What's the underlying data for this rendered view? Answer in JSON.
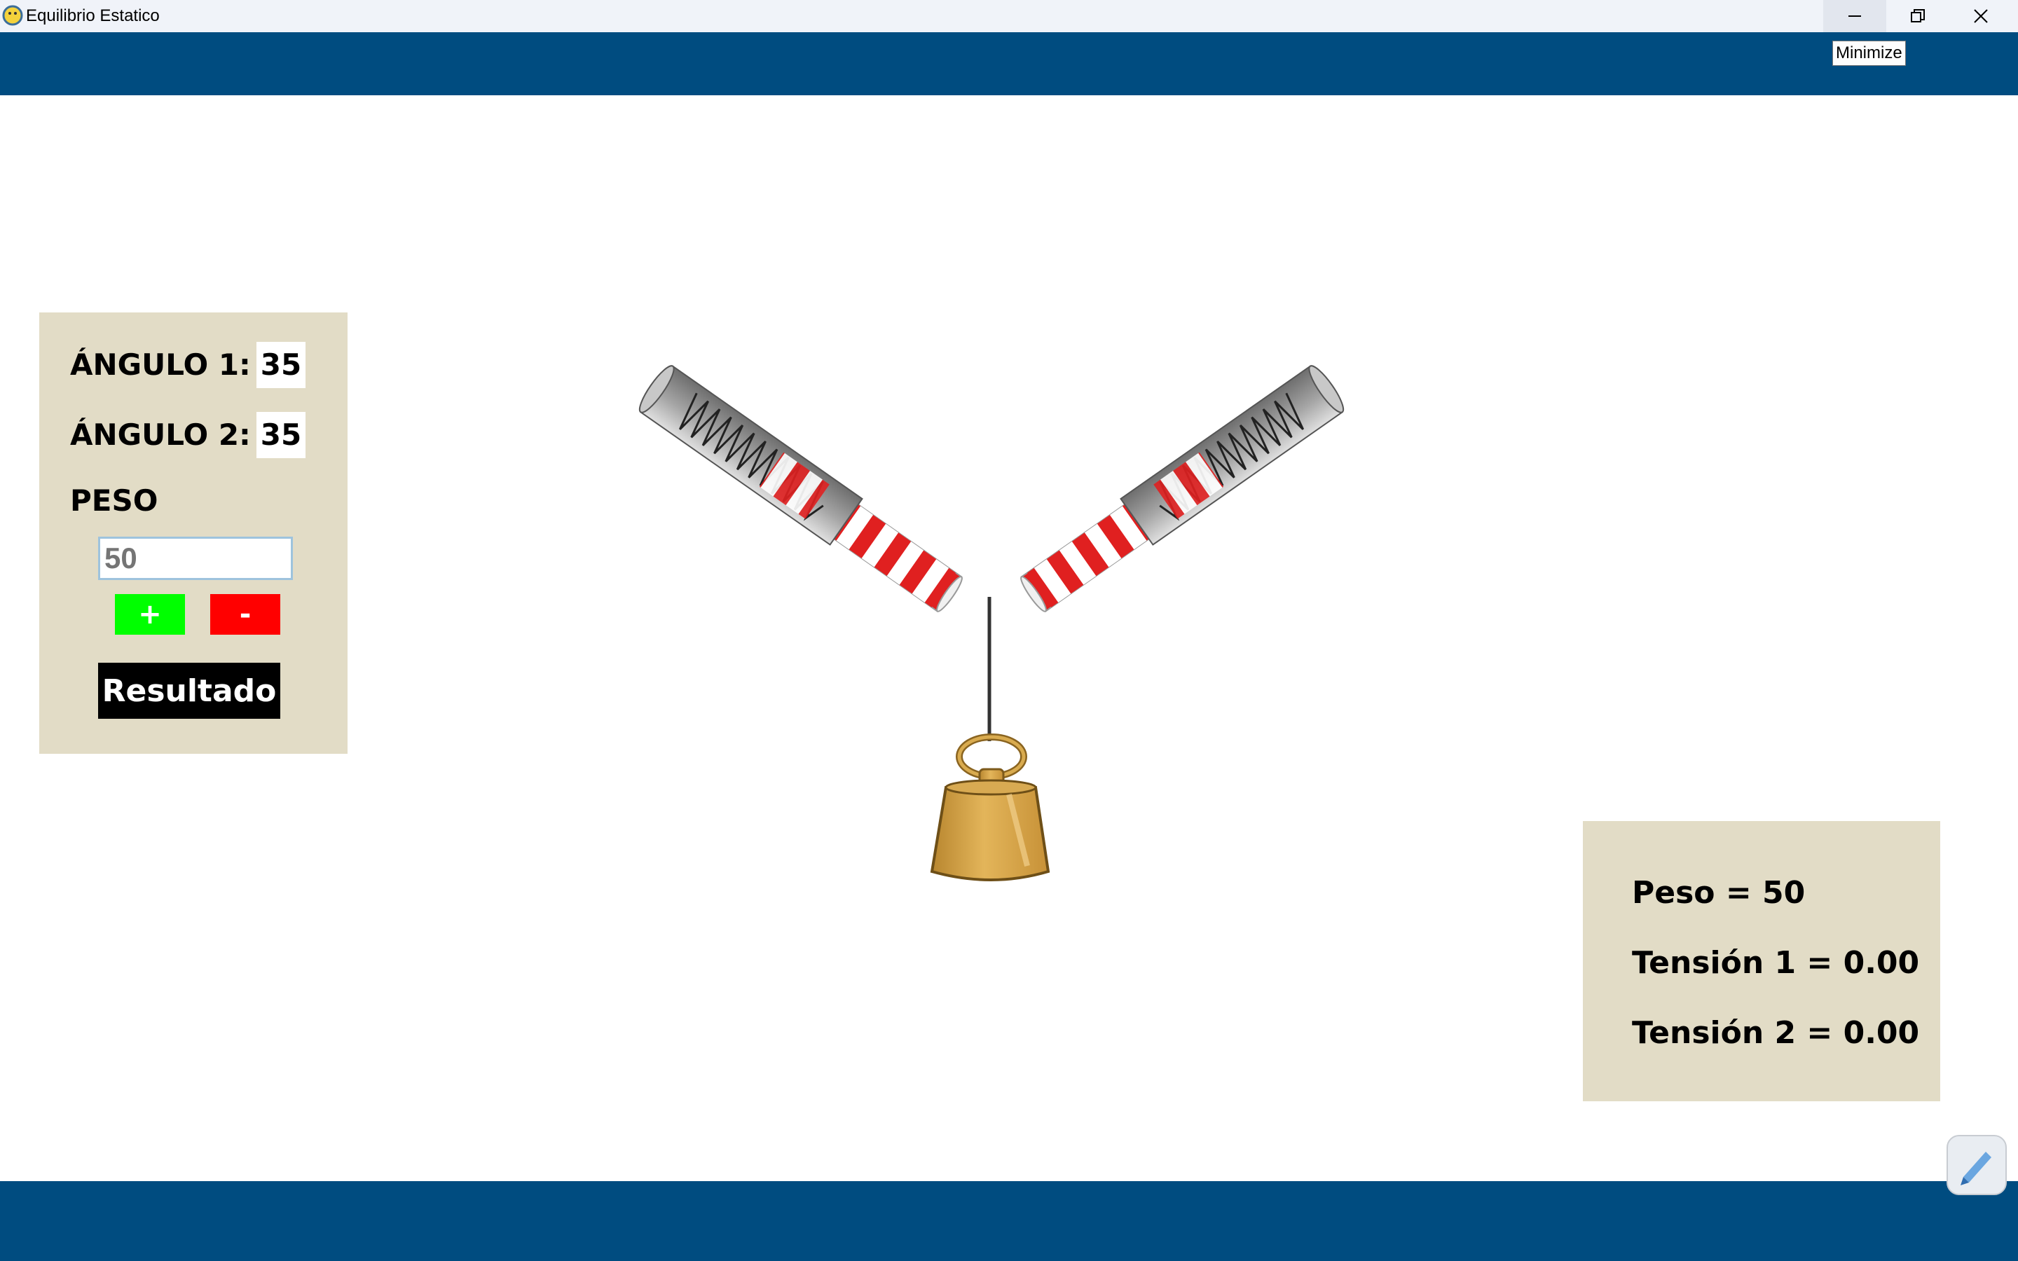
{
  "window": {
    "title": "Equilibrio Estatico",
    "tooltip": "Minimize"
  },
  "controls": {
    "angle1_label": "ÁNGULO 1:",
    "angle1_value": "35",
    "angle2_label": "ÁNGULO 2:",
    "angle2_value": "35",
    "peso_label": "PESO",
    "peso_placeholder": "50",
    "plus_label": "+",
    "minus_label": "-",
    "resultado_label": "Resultado"
  },
  "results": {
    "peso": "Peso = 50",
    "tension1": "Tensión 1 = 0.00",
    "tension2": "Tensión 2 = 0.00"
  },
  "colors": {
    "bar_blue": "#004c80",
    "panel_beige": "#e2dcc6",
    "plus_green": "#00ff00",
    "minus_red": "#ff0000"
  },
  "icons": [
    "app-icon",
    "minimize-icon",
    "restore-icon",
    "close-icon",
    "spring-scale",
    "weight-icon",
    "pen-icon"
  ]
}
